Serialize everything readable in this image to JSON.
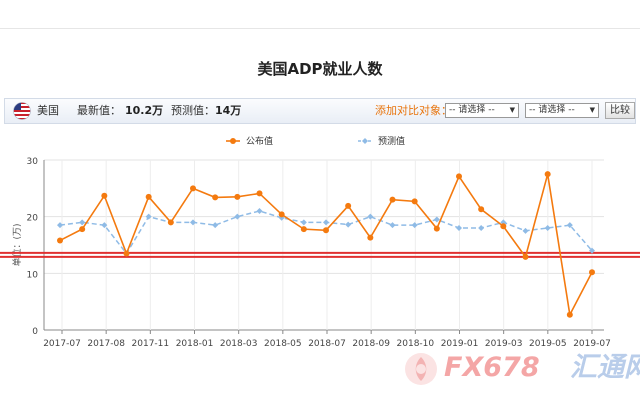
{
  "page": {
    "title": "美国ADP就业人数"
  },
  "toolbar": {
    "country": "美国",
    "latest_label": "最新值：",
    "latest_value": "10.2万",
    "forecast_label": "预测值：",
    "forecast_value": "14万",
    "compare_label": "添加对比对象：",
    "select1": "-- 请选择 --",
    "select2": "-- 请选择 --",
    "compare_button": "比较"
  },
  "watermark": {
    "text": "FX678",
    "text2": "汇通网"
  },
  "colors": {
    "actual": "#f47a0f",
    "forecast": "#8fbbe6",
    "refline": "#e03030"
  },
  "chart_data": {
    "type": "line",
    "ylabel": "单位：(万)",
    "ylim": [
      0,
      30
    ],
    "yticks": [
      0,
      10,
      20,
      30
    ],
    "xtick_labels": [
      "2017-07",
      "2017-08",
      "2017-11",
      "2018-01",
      "2018-03",
      "2018-05",
      "2018-07",
      "2018-09",
      "2018-10",
      "2019-01",
      "2019-03",
      "2019-05",
      "2019-07"
    ],
    "legend": "top-center",
    "grid": true,
    "reference_lines": [
      12.9,
      13.6
    ],
    "series": [
      {
        "name": "公布值",
        "values": [
          15.8,
          17.8,
          23.7,
          13.5,
          23.5,
          19.0,
          25.0,
          23.4,
          23.5,
          24.1,
          20.4,
          17.8,
          17.6,
          21.9,
          16.3,
          23.0,
          22.7,
          17.9,
          27.1,
          21.3,
          18.3,
          12.9,
          27.5,
          2.7,
          10.2
        ]
      },
      {
        "name": "预测值",
        "values": [
          18.5,
          19.0,
          18.5,
          13.5,
          20.0,
          19.0,
          19.0,
          18.5,
          20.0,
          21.0,
          19.8,
          19.0,
          19.0,
          18.6,
          20.0,
          18.5,
          18.5,
          19.5,
          18.0,
          18.0,
          19.0,
          17.5,
          18.0,
          18.5,
          14.0
        ]
      }
    ]
  }
}
